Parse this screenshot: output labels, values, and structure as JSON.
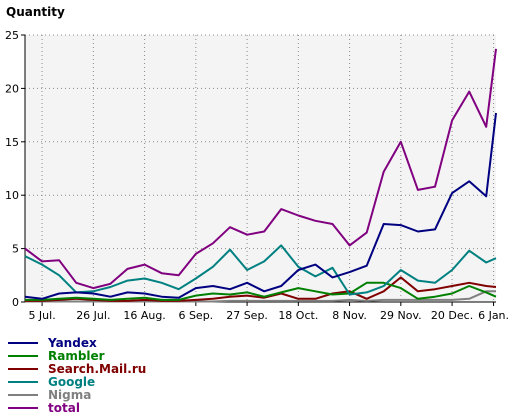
{
  "chart_data": {
    "type": "line",
    "ylabel": "Quantity",
    "xlabel": "",
    "ylim": [
      0,
      25
    ],
    "yticks": [
      0,
      5,
      10,
      15,
      20,
      25
    ],
    "x_tick_labels": [
      "5 Jul.",
      "26 Jul.",
      "16 Aug.",
      "6 Sep.",
      "27 Sep.",
      "18 Oct.",
      "8 Nov.",
      "29 Nov.",
      "20 Dec.",
      "6 Jan."
    ],
    "x_tick_days": [
      0,
      21,
      42,
      63,
      84,
      105,
      126,
      147,
      168,
      185
    ],
    "x_range_days": [
      -7,
      186
    ],
    "grid": true,
    "legend_position": "bottom-left",
    "series": [
      {
        "name": "Yandex",
        "color": "#000080",
        "x": [
          -7,
          0,
          7,
          14,
          21,
          28,
          35,
          42,
          49,
          56,
          63,
          70,
          77,
          84,
          91,
          98,
          105,
          112,
          119,
          126,
          133,
          140,
          147,
          154,
          161,
          168,
          175,
          182,
          186
        ],
        "y": [
          0.5,
          0.3,
          0.8,
          0.9,
          0.8,
          0.5,
          0.9,
          0.8,
          0.5,
          0.4,
          1.3,
          1.5,
          1.2,
          1.8,
          1.0,
          1.5,
          3.0,
          3.5,
          2.3,
          2.8,
          3.4,
          7.3,
          7.2,
          6.6,
          6.8,
          10.2,
          11.3,
          9.9,
          17.7
        ]
      },
      {
        "name": "Rambler",
        "color": "#008000",
        "x": [
          -7,
          0,
          7,
          14,
          21,
          28,
          35,
          42,
          49,
          56,
          63,
          70,
          77,
          84,
          91,
          98,
          105,
          112,
          119,
          126,
          133,
          140,
          147,
          154,
          161,
          168,
          175,
          182,
          186
        ],
        "y": [
          0.2,
          0.2,
          0.3,
          0.4,
          0.3,
          0.2,
          0.3,
          0.4,
          0.2,
          0.2,
          0.6,
          0.8,
          0.7,
          0.9,
          0.5,
          0.9,
          1.3,
          1.0,
          0.7,
          0.8,
          1.8,
          1.8,
          1.3,
          0.3,
          0.5,
          0.8,
          1.5,
          0.9,
          0.5
        ]
      },
      {
        "name": "Search.Mail.ru",
        "color": "#800000",
        "x": [
          -7,
          0,
          7,
          14,
          21,
          28,
          35,
          42,
          49,
          56,
          63,
          70,
          77,
          84,
          91,
          98,
          105,
          112,
          119,
          126,
          133,
          140,
          147,
          154,
          161,
          168,
          175,
          182,
          186
        ],
        "y": [
          0.1,
          0.1,
          0.2,
          0.3,
          0.2,
          0.1,
          0.1,
          0.2,
          0.1,
          0.1,
          0.2,
          0.3,
          0.5,
          0.6,
          0.4,
          0.8,
          0.3,
          0.3,
          0.8,
          1.0,
          0.3,
          1.0,
          2.3,
          1.0,
          1.2,
          1.5,
          1.8,
          1.5,
          1.4
        ]
      },
      {
        "name": "Google",
        "color": "#008080",
        "x": [
          -7,
          0,
          7,
          14,
          21,
          28,
          35,
          42,
          49,
          56,
          63,
          70,
          77,
          84,
          91,
          98,
          105,
          112,
          119,
          126,
          133,
          140,
          147,
          154,
          161,
          168,
          175,
          182,
          186
        ],
        "y": [
          4.3,
          3.5,
          2.5,
          0.9,
          1.0,
          1.4,
          2.0,
          2.2,
          1.8,
          1.2,
          2.2,
          3.3,
          4.9,
          3.0,
          3.8,
          5.3,
          3.3,
          2.4,
          3.2,
          0.7,
          0.9,
          1.5,
          3.0,
          2.0,
          1.8,
          3.0,
          4.8,
          3.7,
          4.1
        ]
      },
      {
        "name": "Nigma",
        "color": "#808080",
        "x": [
          -7,
          0,
          7,
          14,
          21,
          28,
          35,
          42,
          49,
          56,
          63,
          70,
          77,
          84,
          91,
          98,
          105,
          112,
          119,
          126,
          133,
          140,
          147,
          154,
          161,
          168,
          175,
          182,
          186
        ],
        "y": [
          0.05,
          0.05,
          0.05,
          0.05,
          0.05,
          0.05,
          0.05,
          0.05,
          0.05,
          0.05,
          0.05,
          0.05,
          0.1,
          0.1,
          0.1,
          0.1,
          0.1,
          0.1,
          0.1,
          0.2,
          0.1,
          0.2,
          0.2,
          0.2,
          0.2,
          0.2,
          0.3,
          1.0,
          1.0
        ]
      },
      {
        "name": "total",
        "color": "#800080",
        "x": [
          -7,
          0,
          7,
          14,
          21,
          28,
          35,
          42,
          49,
          56,
          63,
          70,
          77,
          84,
          91,
          98,
          105,
          112,
          119,
          126,
          133,
          140,
          147,
          154,
          161,
          168,
          175,
          182,
          186
        ],
        "y": [
          5.0,
          3.8,
          3.9,
          1.8,
          1.3,
          1.7,
          3.1,
          3.5,
          2.7,
          2.5,
          4.5,
          5.5,
          7.0,
          6.3,
          6.6,
          8.7,
          8.1,
          7.6,
          7.3,
          5.3,
          6.5,
          12.2,
          15.0,
          10.5,
          10.8,
          17.0,
          19.7,
          16.4,
          23.7
        ]
      }
    ]
  }
}
